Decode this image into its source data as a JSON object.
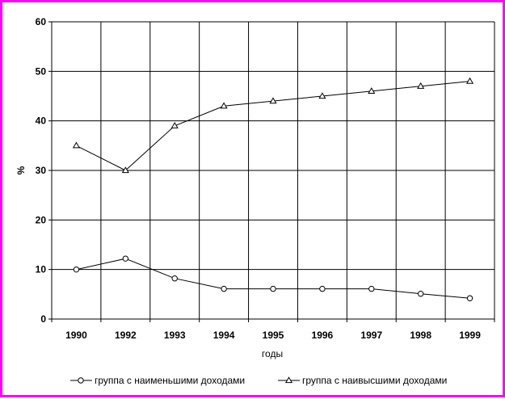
{
  "chart_data": {
    "type": "line",
    "title": "",
    "xlabel": "годы",
    "ylabel": "%",
    "categories": [
      "1990",
      "1992",
      "1993",
      "1994",
      "1995",
      "1996",
      "1997",
      "1998",
      "1999"
    ],
    "ylim": [
      0,
      60
    ],
    "yticks": [
      "0",
      "10",
      "20",
      "30",
      "40",
      "50",
      "60"
    ],
    "grid": true,
    "legend_position": "bottom",
    "series": [
      {
        "name": "группа с наименьшими доходами",
        "marker": "circle",
        "values": [
          10,
          12.2,
          8.2,
          6.1,
          6.1,
          6.1,
          6.1,
          5.1,
          4.2
        ]
      },
      {
        "name": "группа с наивысшими доходами",
        "marker": "triangle",
        "values": [
          35,
          30,
          39,
          43,
          44,
          45,
          46,
          47,
          48
        ]
      }
    ]
  },
  "colors": {
    "frame": "#ff00ff",
    "line": "#000000",
    "background": "#ffffff"
  }
}
